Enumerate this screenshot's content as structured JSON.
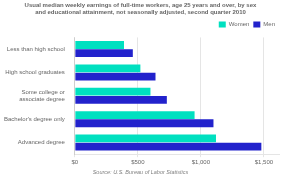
{
  "chart_data": {
    "type": "bar",
    "orientation": "horizontal",
    "title": "Usual median weekly earnings of full-time workers, age 25 years and over, by sex\nand educational attainment, not seasonally adjusted, second quarter 2010",
    "categories": [
      "Less than high school",
      "High school graduates",
      "Some college or\nassociate degree",
      "Bachelor's degree only",
      "Advanced degree"
    ],
    "series": [
      {
        "name": "Women",
        "color": "#00e0c0",
        "values": [
          390,
          520,
          600,
          950,
          1120
        ]
      },
      {
        "name": "Men",
        "color": "#2222cc",
        "values": [
          460,
          640,
          730,
          1100,
          1480
        ]
      }
    ],
    "xlim": [
      0,
      1620
    ],
    "xticks": [
      {
        "value": 0,
        "label": "$0"
      },
      {
        "value": 500,
        "label": "$500"
      },
      {
        "value": 1000,
        "label": "$1,000"
      },
      {
        "value": 1500,
        "label": "$1,500"
      }
    ],
    "grid": true,
    "legend": "upper right",
    "annotations": [
      "Source: U.S. Bureau of Labor Statistics"
    ]
  }
}
